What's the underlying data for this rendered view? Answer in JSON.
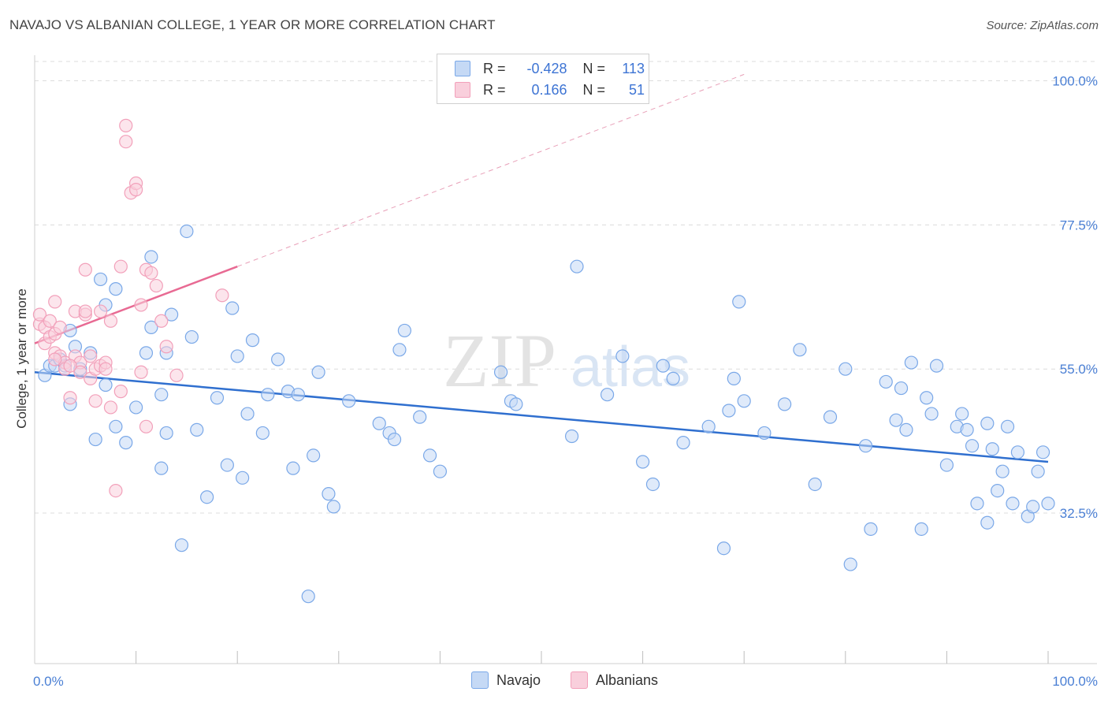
{
  "header": {
    "title": "NAVAJO VS ALBANIAN COLLEGE, 1 YEAR OR MORE CORRELATION CHART",
    "source": "Source: ZipAtlas.com"
  },
  "watermark": {
    "zip": "ZIP",
    "atlas": "atlas"
  },
  "legend_stats": [
    {
      "r_label": "R =",
      "r_value": "-0.428",
      "n_label": "N =",
      "n_value": "113"
    },
    {
      "r_label": "R =",
      "r_value": "0.166",
      "n_label": "N =",
      "n_value": "51"
    }
  ],
  "chart_data": {
    "type": "scatter",
    "xlabel": "",
    "ylabel": "College, 1 year or more",
    "xlim": [
      0,
      100
    ],
    "ylim": [
      9,
      104
    ],
    "x_tick_labels": [
      {
        "value": 0,
        "label": "0.0%"
      },
      {
        "value": 100,
        "label": "100.0%"
      }
    ],
    "y_tick_labels": [
      {
        "value": 100,
        "label": "100.0%"
      },
      {
        "value": 77.5,
        "label": "77.5%"
      },
      {
        "value": 55,
        "label": "55.0%"
      },
      {
        "value": 32.5,
        "label": "32.5%"
      }
    ],
    "x_minor_ticks": [
      10,
      20,
      30,
      40,
      50,
      60,
      70,
      80,
      90,
      100
    ],
    "grid": true,
    "legend_position": "bottom",
    "series": [
      {
        "name": "Navajo",
        "color": "#7aa8e8",
        "fill": "#c5d9f5",
        "trend": {
          "x": [
            0,
            100
          ],
          "y": [
            54.5,
            40.5
          ],
          "color": "#2f6fcf"
        },
        "points": [
          [
            1.0,
            54.0
          ],
          [
            1.5,
            55.5
          ],
          [
            2.0,
            55.5
          ],
          [
            2.5,
            56.5
          ],
          [
            3.0,
            55.5
          ],
          [
            3.5,
            49.5
          ],
          [
            3.5,
            61.0
          ],
          [
            4.0,
            58.5
          ],
          [
            4.5,
            55.0
          ],
          [
            5.5,
            57.5
          ],
          [
            6.0,
            44.0
          ],
          [
            6.5,
            69.0
          ],
          [
            7.0,
            65.0
          ],
          [
            7.0,
            52.5
          ],
          [
            8.0,
            67.5
          ],
          [
            8.0,
            46.0
          ],
          [
            9.0,
            43.5
          ],
          [
            10.0,
            49.0
          ],
          [
            11.0,
            57.5
          ],
          [
            11.5,
            72.5
          ],
          [
            11.5,
            61.5
          ],
          [
            12.5,
            51.0
          ],
          [
            12.5,
            39.5
          ],
          [
            13.0,
            45.0
          ],
          [
            13.0,
            57.5
          ],
          [
            13.5,
            63.5
          ],
          [
            14.5,
            27.5
          ],
          [
            15.0,
            76.5
          ],
          [
            15.5,
            60.0
          ],
          [
            16.0,
            45.5
          ],
          [
            17.0,
            35.0
          ],
          [
            18.0,
            50.5
          ],
          [
            19.0,
            40.0
          ],
          [
            19.5,
            64.5
          ],
          [
            20.0,
            57.0
          ],
          [
            20.5,
            38.0
          ],
          [
            21.0,
            48.0
          ],
          [
            21.5,
            59.5
          ],
          [
            22.5,
            45.0
          ],
          [
            23.0,
            51.0
          ],
          [
            24.0,
            56.5
          ],
          [
            25.0,
            51.5
          ],
          [
            25.5,
            39.5
          ],
          [
            26.0,
            51.0
          ],
          [
            27.0,
            19.5
          ],
          [
            27.5,
            41.5
          ],
          [
            28.0,
            54.5
          ],
          [
            29.0,
            35.5
          ],
          [
            29.5,
            33.5
          ],
          [
            31.0,
            50.0
          ],
          [
            34.0,
            46.5
          ],
          [
            35.0,
            45.0
          ],
          [
            35.5,
            44.0
          ],
          [
            36.0,
            58.0
          ],
          [
            36.5,
            61.0
          ],
          [
            38.0,
            47.5
          ],
          [
            39.0,
            41.5
          ],
          [
            40.0,
            39.0
          ],
          [
            46.0,
            54.5
          ],
          [
            47.0,
            50.0
          ],
          [
            47.5,
            49.5
          ],
          [
            53.0,
            44.5
          ],
          [
            53.5,
            71.0
          ],
          [
            56.5,
            51.0
          ],
          [
            58.0,
            57.0
          ],
          [
            60.0,
            40.5
          ],
          [
            61.0,
            37.0
          ],
          [
            62.0,
            55.5
          ],
          [
            63.0,
            53.5
          ],
          [
            64.0,
            43.5
          ],
          [
            66.5,
            46.0
          ],
          [
            68.0,
            27.0
          ],
          [
            68.5,
            48.5
          ],
          [
            69.0,
            53.5
          ],
          [
            69.5,
            65.5
          ],
          [
            70.0,
            50.0
          ],
          [
            72.0,
            45.0
          ],
          [
            74.0,
            49.5
          ],
          [
            75.5,
            58.0
          ],
          [
            77.0,
            37.0
          ],
          [
            78.5,
            47.5
          ],
          [
            80.0,
            55.0
          ],
          [
            80.5,
            24.5
          ],
          [
            82.0,
            43.0
          ],
          [
            82.5,
            30.0
          ],
          [
            84.0,
            53.0
          ],
          [
            85.0,
            47.0
          ],
          [
            85.5,
            52.0
          ],
          [
            86.0,
            45.5
          ],
          [
            86.5,
            56.0
          ],
          [
            87.5,
            30.0
          ],
          [
            88.0,
            50.5
          ],
          [
            88.5,
            48.0
          ],
          [
            89.0,
            55.5
          ],
          [
            90.0,
            40.0
          ],
          [
            91.0,
            46.0
          ],
          [
            91.5,
            48.0
          ],
          [
            92.0,
            45.5
          ],
          [
            92.5,
            43.0
          ],
          [
            93.0,
            34.0
          ],
          [
            94.0,
            46.5
          ],
          [
            94.0,
            31.0
          ],
          [
            94.5,
            42.5
          ],
          [
            95.0,
            36.0
          ],
          [
            95.5,
            39.0
          ],
          [
            96.0,
            46.0
          ],
          [
            96.5,
            34.0
          ],
          [
            97.0,
            42.0
          ],
          [
            98.0,
            32.0
          ],
          [
            98.5,
            33.5
          ],
          [
            99.0,
            39.0
          ],
          [
            99.5,
            42.0
          ],
          [
            100.0,
            34.0
          ]
        ]
      },
      {
        "name": "Albanians",
        "color": "#f2a0ba",
        "fill": "#f9cfdc",
        "trend": {
          "x": [
            0,
            20
          ],
          "y": [
            59.0,
            71.0
          ],
          "color": "#e86a93"
        },
        "trend_extension": {
          "x": [
            20,
            70
          ],
          "y": [
            71.0,
            101.0
          ]
        },
        "points": [
          [
            0.5,
            62.0
          ],
          [
            0.5,
            63.5
          ],
          [
            1.0,
            61.5
          ],
          [
            1.0,
            59.0
          ],
          [
            1.5,
            62.5
          ],
          [
            1.5,
            60.0
          ],
          [
            2.0,
            65.5
          ],
          [
            2.0,
            60.5
          ],
          [
            2.0,
            57.5
          ],
          [
            2.5,
            61.5
          ],
          [
            2.5,
            57.0
          ],
          [
            3.0,
            56.0
          ],
          [
            3.0,
            55.0
          ],
          [
            3.5,
            50.5
          ],
          [
            4.0,
            64.0
          ],
          [
            4.0,
            57.0
          ],
          [
            4.5,
            56.0
          ],
          [
            4.5,
            54.5
          ],
          [
            5.0,
            63.5
          ],
          [
            5.0,
            70.5
          ],
          [
            5.0,
            64.0
          ],
          [
            5.5,
            53.5
          ],
          [
            5.5,
            57.0
          ],
          [
            6.0,
            55.0
          ],
          [
            6.0,
            50.0
          ],
          [
            6.5,
            55.5
          ],
          [
            6.5,
            64.0
          ],
          [
            7.0,
            56.0
          ],
          [
            7.0,
            55.0
          ],
          [
            7.5,
            49.0
          ],
          [
            7.5,
            62.5
          ],
          [
            8.0,
            36.0
          ],
          [
            8.5,
            71.0
          ],
          [
            8.5,
            51.5
          ],
          [
            9.0,
            93.0
          ],
          [
            9.0,
            90.5
          ],
          [
            9.5,
            82.5
          ],
          [
            10.0,
            84.0
          ],
          [
            10.0,
            83.0
          ],
          [
            10.5,
            65.0
          ],
          [
            10.5,
            54.5
          ],
          [
            11.0,
            70.5
          ],
          [
            11.0,
            46.0
          ],
          [
            11.5,
            70.0
          ],
          [
            12.0,
            68.0
          ],
          [
            12.5,
            62.5
          ],
          [
            13.0,
            58.5
          ],
          [
            14.0,
            54.0
          ],
          [
            18.5,
            66.5
          ],
          [
            2.0,
            56.5
          ],
          [
            3.5,
            55.5
          ]
        ]
      }
    ]
  }
}
